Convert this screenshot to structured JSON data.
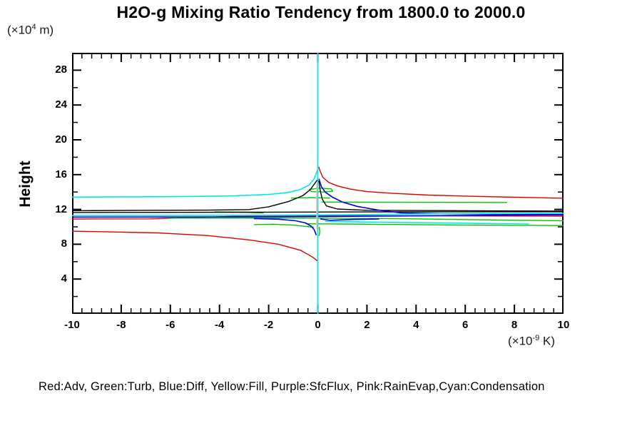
{
  "title": "H2O-g Mixing Ratio Tendency from 1800.0 to 2000.0",
  "y_axis": {
    "label": "Height",
    "unit_prefix": "(×10",
    "unit_sup": "4",
    "unit_suffix": " m)",
    "tick_labels": [
      "4",
      "8",
      "12",
      "16",
      "20",
      "24",
      "28"
    ]
  },
  "x_axis": {
    "unit_prefix": "(×10",
    "unit_sup": "-9",
    "unit_suffix": " K)",
    "tick_labels": [
      "-10",
      "-8",
      "-6",
      "-4",
      "-2",
      "0",
      "2",
      "4",
      "6",
      "8",
      "10"
    ]
  },
  "legend": "Red:Adv, Green:Turb, Blue:Diff, Yellow:Fill, Purple:SfcFlux, Pink:RainEvap,Cyan:Condensation",
  "chart_data": {
    "type": "line",
    "title": "H2O-g Mixing Ratio Tendency from 1800.0 to 2000.0",
    "xlabel": "tendency (x10^-9 K)",
    "ylabel": "Height (x10^4 m)",
    "xlim": [
      -10,
      10
    ],
    "ylim": [
      0,
      30
    ],
    "grid": false,
    "legend_position": "bottom",
    "x_major_ticks": [
      -10,
      -8,
      -6,
      -4,
      -2,
      0,
      2,
      4,
      6,
      8,
      10
    ],
    "x_minor_step": 0.4,
    "y_major_ticks": [
      4,
      8,
      12,
      16,
      20,
      24,
      28
    ],
    "y_minor_step": 2,
    "frame_color": "#000000",
    "series": [
      {
        "name": "Fill",
        "color": "#ffff00",
        "width": 1.2,
        "segments": [
          [
            [
              0,
              0
            ],
            [
              0,
              30
            ]
          ]
        ]
      },
      {
        "name": "SfcFlux",
        "color": "#a000a0",
        "width": 1.2,
        "segments": [
          [
            [
              0,
              0
            ],
            [
              0,
              30
            ]
          ]
        ]
      },
      {
        "name": "Adv",
        "color": "#e00000",
        "width": 1.4,
        "segments": [
          [
            [
              0,
              6.06
            ],
            [
              -0.2,
              6.5
            ],
            [
              -0.7,
              7.3
            ],
            [
              -1.6,
              8.0
            ],
            [
              -2.8,
              8.5
            ],
            [
              -4.5,
              9.0
            ],
            [
              -6.5,
              9.3
            ],
            [
              -8.5,
              9.42
            ],
            [
              -10,
              9.5
            ]
          ],
          [
            [
              -10,
              10.9
            ],
            [
              -6.8,
              10.92
            ],
            [
              -4.5,
              11.1
            ],
            [
              -3.2,
              11.25
            ],
            [
              0,
              11.28
            ],
            [
              5,
              11.26
            ],
            [
              10,
              11.23
            ]
          ],
          [
            [
              10,
              13.29
            ],
            [
              8,
              13.4
            ],
            [
              6,
              13.53
            ],
            [
              4.5,
              13.65
            ],
            [
              3,
              13.86
            ],
            [
              2,
              14.05
            ],
            [
              1.3,
              14.35
            ],
            [
              0.8,
              14.7
            ],
            [
              0.45,
              15.1
            ],
            [
              0.2,
              15.7
            ],
            [
              0.07,
              16.6
            ],
            [
              0.04,
              16.9
            ]
          ]
        ]
      },
      {
        "name": "Turb",
        "color": "#00c800",
        "width": 1.4,
        "segments": [
          [
            [
              -0.35,
              14.3
            ],
            [
              0.1,
              14.45
            ],
            [
              0.55,
              14.35
            ],
            [
              0.6,
              14.1
            ],
            [
              0.2,
              14.0
            ],
            [
              -0.25,
              14.05
            ],
            [
              -0.35,
              14.3
            ]
          ],
          [
            [
              -1.1,
              13.3
            ],
            [
              -0.3,
              13.35
            ],
            [
              0.5,
              13.3
            ]
          ],
          [
            [
              0.15,
              12.85
            ],
            [
              3,
              12.82
            ],
            [
              7.7,
              12.8
            ]
          ],
          [
            [
              -4.2,
              11.72
            ],
            [
              -3.0,
              11.68
            ],
            [
              -2.2,
              11.6
            ]
          ],
          [
            [
              -6.1,
              11.0
            ],
            [
              -3,
              11.0
            ],
            [
              0,
              11.0
            ],
            [
              3,
              10.95
            ],
            [
              7.4,
              10.78
            ],
            [
              10,
              10.7
            ]
          ],
          [
            [
              -0.5,
              10.35
            ],
            [
              2,
              10.3
            ],
            [
              6,
              10.2
            ],
            [
              10,
              10.15
            ]
          ],
          [
            [
              -2.6,
              10.25
            ],
            [
              -1.8,
              10.3
            ],
            [
              -1.0,
              10.2
            ],
            [
              -0.5,
              10.05
            ],
            [
              -0.15,
              9.95
            ]
          ],
          [
            [
              0.06,
              10.0
            ],
            [
              0.08,
              9.4
            ],
            [
              0.05,
              8.95
            ]
          ]
        ]
      },
      {
        "name": "black-unlabeled",
        "color": "#000000",
        "width": 1.4,
        "segments": [
          [
            [
              -10,
              11.85
            ],
            [
              -7,
              11.9
            ],
            [
              -4.5,
              11.92
            ],
            [
              -2.8,
              11.98
            ],
            [
              -2.0,
              12.3
            ],
            [
              -1.2,
              12.9
            ],
            [
              -0.6,
              13.6
            ],
            [
              -0.3,
              14.3
            ],
            [
              -0.12,
              15.0
            ],
            [
              -0.03,
              15.35
            ],
            [
              0.05,
              15.2
            ],
            [
              0.1,
              14.2
            ],
            [
              0.18,
              13.2
            ],
            [
              0.35,
              12.4
            ],
            [
              0.8,
              12.05
            ],
            [
              2,
              11.9
            ],
            [
              10,
              11.8
            ]
          ],
          [
            [
              -10,
              11.65
            ],
            [
              -3,
              11.68
            ],
            [
              3,
              11.72
            ],
            [
              10,
              11.74
            ]
          ]
        ]
      },
      {
        "name": "Diff",
        "color": "#0000e0",
        "width": 1.6,
        "segments": [
          [
            [
              -10,
              11.12
            ],
            [
              -3,
              11.14
            ],
            [
              0,
              11.18
            ],
            [
              3,
              11.25
            ],
            [
              7,
              11.33
            ],
            [
              10,
              11.38
            ]
          ],
          [
            [
              0.05,
              15.5
            ],
            [
              0.15,
              14.6
            ],
            [
              0.3,
              14.0
            ],
            [
              0.6,
              13.4
            ],
            [
              1.0,
              12.85
            ],
            [
              1.6,
              12.35
            ],
            [
              2.4,
              11.95
            ],
            [
              3.4,
              11.6
            ],
            [
              5,
              11.5
            ],
            [
              10,
              11.42
            ]
          ],
          [
            [
              -2.6,
              10.95
            ],
            [
              -1.6,
              10.88
            ],
            [
              -0.9,
              10.7
            ],
            [
              -0.5,
              10.45
            ],
            [
              -0.28,
              10.1
            ],
            [
              -0.15,
              9.7
            ],
            [
              -0.06,
              9.05
            ]
          ],
          [
            [
              0.1,
              10.9
            ],
            [
              0.5,
              10.75
            ],
            [
              1.5,
              10.85
            ],
            [
              2.5,
              10.9
            ]
          ]
        ]
      },
      {
        "name": "Condensation",
        "color": "#00e8e8",
        "width": 1.6,
        "segments": [
          [
            [
              0,
              0
            ],
            [
              0,
              30
            ]
          ],
          [
            [
              -10,
              13.42
            ],
            [
              -6,
              13.47
            ],
            [
              -3.5,
              13.55
            ],
            [
              -2,
              13.72
            ],
            [
              -1.2,
              13.95
            ],
            [
              -0.7,
              14.3
            ],
            [
              -0.35,
              14.8
            ],
            [
              -0.15,
              15.5
            ],
            [
              -0.04,
              16.3
            ],
            [
              0,
              16.55
            ]
          ],
          [
            [
              -10,
              11.3
            ],
            [
              -2,
              11.33
            ],
            [
              1.5,
              11.4
            ],
            [
              5,
              11.5
            ],
            [
              10,
              11.56
            ]
          ],
          [
            [
              0.3,
              10.62
            ],
            [
              2,
              10.55
            ],
            [
              5,
              10.45
            ],
            [
              8.6,
              10.33
            ]
          ]
        ]
      },
      {
        "name": "RainEvap",
        "color": "#ffb0b0",
        "width": 1.6,
        "segments": [
          [
            [
              -0.04,
              15.05
            ],
            [
              -0.04,
              9.75
            ]
          ]
        ]
      }
    ]
  }
}
